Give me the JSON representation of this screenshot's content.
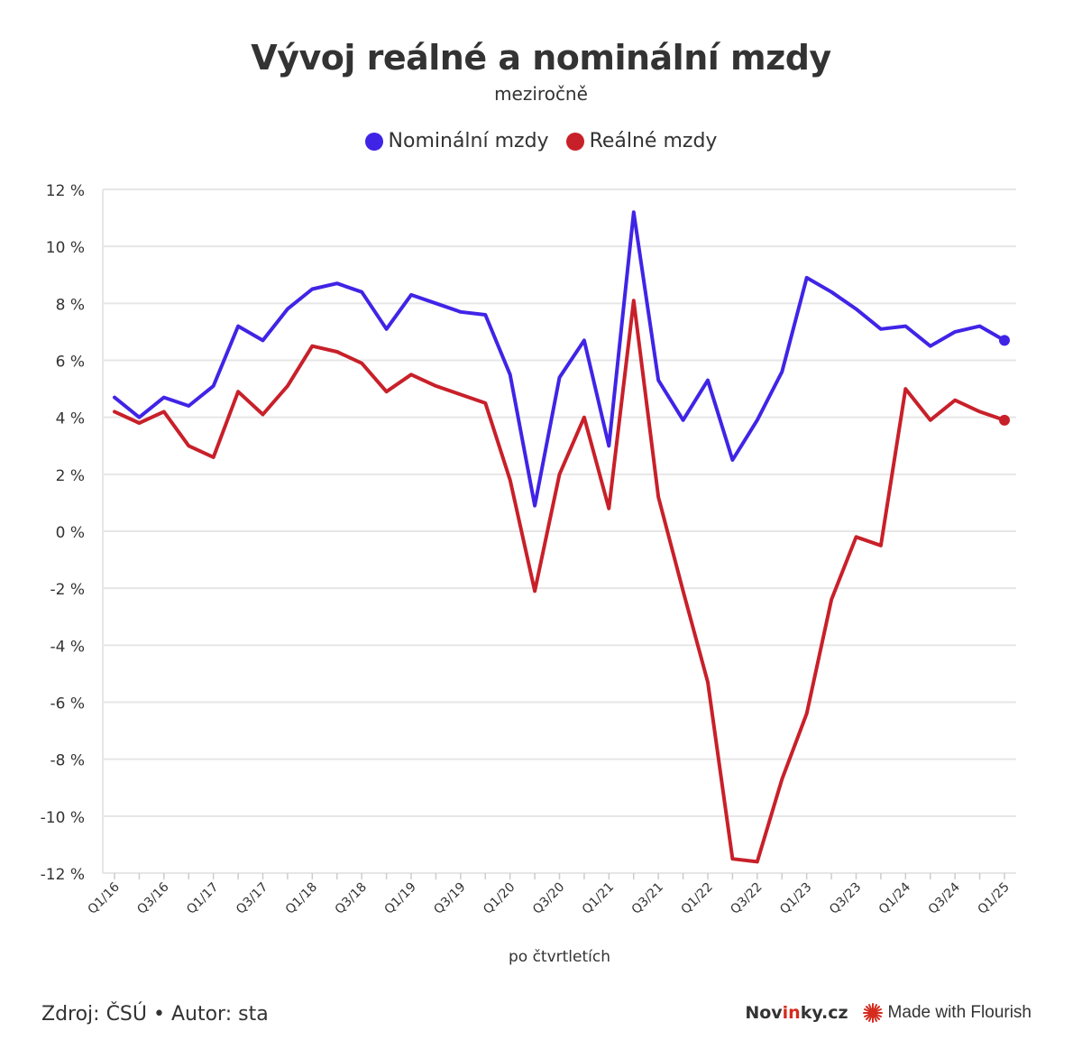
{
  "header": {
    "title": "Vývoj reálné a nominální mzdy",
    "subtitle": "meziročně"
  },
  "colors": {
    "nominal": "#4024e6",
    "real": "#c8202a",
    "grid": "#e6e6e6",
    "text": "#333333"
  },
  "legend": {
    "nominal_label": "Nominální mzdy",
    "real_label": "Reálné mzdy"
  },
  "footer": {
    "source": "Zdroj: ČSÚ • Autor: sta",
    "brand_pre": "Nov",
    "brand_accent": "in",
    "brand_post": "ky.cz",
    "flourish": "Made with Flourish"
  },
  "chart_data": {
    "type": "line",
    "title": "Vývoj reálné a nominální mzdy",
    "subtitle": "meziročně",
    "xlabel": "po čtvrtletích",
    "ylabel": "",
    "ylim": [
      -12,
      12
    ],
    "yticks": [
      12,
      10,
      8,
      6,
      4,
      2,
      0,
      -2,
      -4,
      -6,
      -8,
      -10,
      -12
    ],
    "ytick_labels": [
      "12 %",
      "10 %",
      "8 %",
      "6 %",
      "4 %",
      "2 %",
      "0 %",
      "-2 %",
      "-4 %",
      "-6 %",
      "-8 %",
      "-10 %",
      "-12 %"
    ],
    "x": [
      "Q1/16",
      "Q2/16",
      "Q3/16",
      "Q4/16",
      "Q1/17",
      "Q2/17",
      "Q3/17",
      "Q4/17",
      "Q1/18",
      "Q2/18",
      "Q3/18",
      "Q4/18",
      "Q1/19",
      "Q2/19",
      "Q3/19",
      "Q4/19",
      "Q1/20",
      "Q2/20",
      "Q3/20",
      "Q4/20",
      "Q1/21",
      "Q2/21",
      "Q3/21",
      "Q4/21",
      "Q1/22",
      "Q2/22",
      "Q3/22",
      "Q4/22",
      "Q1/23",
      "Q2/23",
      "Q3/23",
      "Q4/23",
      "Q1/24",
      "Q2/24",
      "Q3/24",
      "Q4/24",
      "Q1/25"
    ],
    "x_tick_labels": [
      "Q1/16",
      "Q3/16",
      "Q1/17",
      "Q3/17",
      "Q1/18",
      "Q3/18",
      "Q1/19",
      "Q3/19",
      "Q1/20",
      "Q3/20",
      "Q1/21",
      "Q3/21",
      "Q1/22",
      "Q3/22",
      "Q1/23",
      "Q3/23",
      "Q1/24",
      "Q3/24",
      "Q1/25"
    ],
    "grid": true,
    "legend_position": "top-center",
    "series": [
      {
        "name": "Nominální mzdy",
        "values": [
          4.7,
          4.0,
          4.7,
          4.4,
          5.1,
          7.2,
          6.7,
          7.8,
          8.5,
          8.7,
          8.4,
          7.1,
          8.3,
          8.0,
          7.7,
          7.6,
          5.5,
          0.9,
          5.4,
          6.7,
          3.0,
          11.2,
          5.3,
          3.9,
          5.3,
          2.5,
          3.9,
          5.6,
          8.9,
          8.4,
          7.8,
          7.1,
          7.2,
          6.5,
          7.0,
          7.2,
          6.7
        ]
      },
      {
        "name": "Reálné mzdy",
        "values": [
          4.2,
          3.8,
          4.2,
          3.0,
          2.6,
          4.9,
          4.1,
          5.1,
          6.5,
          6.3,
          5.9,
          4.9,
          5.5,
          5.1,
          4.8,
          4.5,
          1.8,
          -2.1,
          2.0,
          4.0,
          0.8,
          8.1,
          1.2,
          -2.1,
          -5.3,
          -11.5,
          -11.6,
          -8.7,
          -6.4,
          -2.4,
          -0.2,
          -0.5,
          5.0,
          3.9,
          4.6,
          4.2,
          3.9
        ]
      }
    ]
  }
}
